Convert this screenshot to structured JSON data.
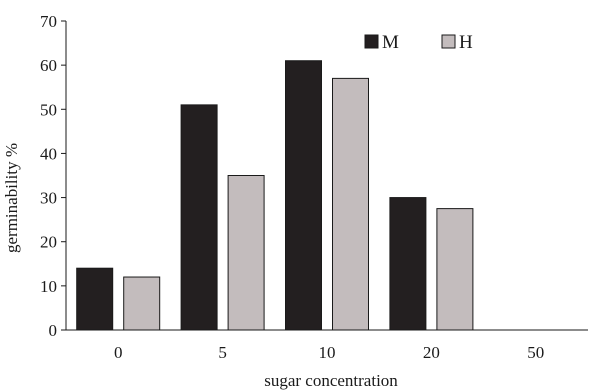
{
  "chart_data": {
    "type": "bar",
    "title": "",
    "xlabel": "sugar concentration",
    "ylabel": "germinability %",
    "categories": [
      "0",
      "5",
      "10",
      "20",
      "50"
    ],
    "ylim": [
      0,
      70
    ],
    "yticks": [
      0,
      10,
      20,
      30,
      40,
      50,
      60,
      70
    ],
    "grid": false,
    "legend_position": "top-right",
    "series": [
      {
        "name": "M",
        "color": "#231f20",
        "values": [
          14,
          51,
          61,
          30,
          0
        ]
      },
      {
        "name": "H",
        "color": "#c3bcbd",
        "values": [
          12,
          35,
          57,
          27.5,
          0
        ]
      }
    ]
  }
}
